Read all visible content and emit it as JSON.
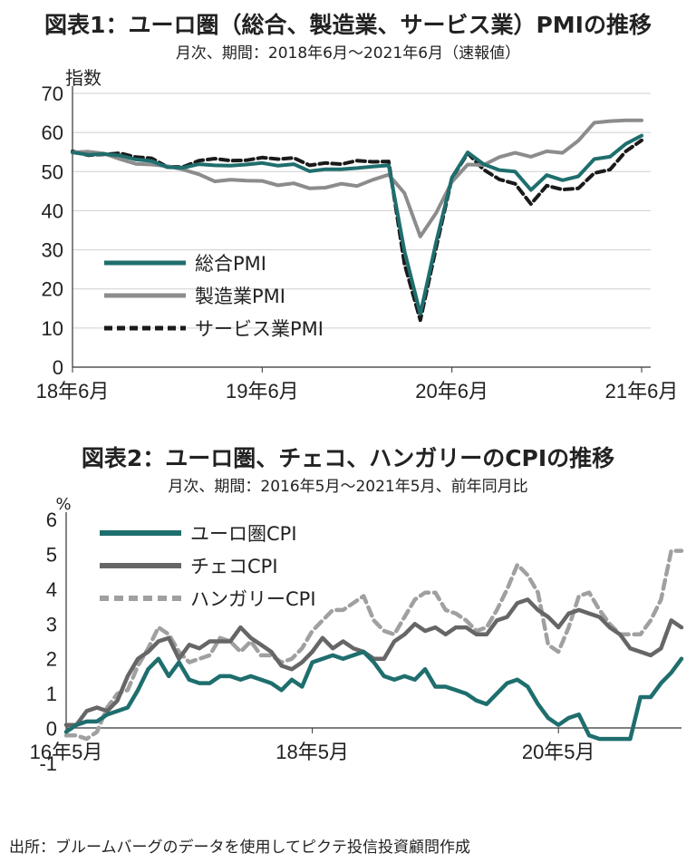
{
  "chart_data": [
    {
      "type": "line",
      "title": "図表1：ユーロ圏（総合、製造業、サービス業）PMIの推移",
      "subtitle": "月次、期間：2018年6月～2021年6月（速報値）",
      "ylabel": "指数",
      "xlabel": "",
      "ylim": [
        0,
        70
      ],
      "yticks": [
        "0",
        "10",
        "20",
        "30",
        "40",
        "50",
        "60",
        "70"
      ],
      "xtick_labels": [
        "18年6月",
        "19年6月",
        "20年6月",
        "21年6月"
      ],
      "x": [
        "2018-06",
        "2018-07",
        "2018-08",
        "2018-09",
        "2018-10",
        "2018-11",
        "2018-12",
        "2019-01",
        "2019-02",
        "2019-03",
        "2019-04",
        "2019-05",
        "2019-06",
        "2019-07",
        "2019-08",
        "2019-09",
        "2019-10",
        "2019-11",
        "2019-12",
        "2020-01",
        "2020-02",
        "2020-03",
        "2020-04",
        "2020-05",
        "2020-06",
        "2020-07",
        "2020-08",
        "2020-09",
        "2020-10",
        "2020-11",
        "2020-12",
        "2021-01",
        "2021-02",
        "2021-03",
        "2021-04",
        "2021-05",
        "2021-06"
      ],
      "grid": true,
      "legend_position": "bottom-left",
      "series": [
        {
          "name": "総合PMI",
          "color": "#1f6e6e",
          "style": "solid",
          "values": [
            54.9,
            54.3,
            54.5,
            54.1,
            53.1,
            52.7,
            51.1,
            51.0,
            51.9,
            51.6,
            51.5,
            51.8,
            52.2,
            51.5,
            51.9,
            50.1,
            50.6,
            50.6,
            50.9,
            51.3,
            51.6,
            29.7,
            13.6,
            31.9,
            48.5,
            54.9,
            51.9,
            50.4,
            50.0,
            45.3,
            49.1,
            47.8,
            48.8,
            53.2,
            53.8,
            57.1,
            59.2
          ]
        },
        {
          "name": "製造業PMI",
          "color": "#8c8c8c",
          "style": "solid",
          "values": [
            54.9,
            55.1,
            54.6,
            53.2,
            52.0,
            51.8,
            51.4,
            50.5,
            49.3,
            47.5,
            47.9,
            47.7,
            47.6,
            46.5,
            47.0,
            45.7,
            45.9,
            46.9,
            46.3,
            47.9,
            49.2,
            44.5,
            33.4,
            39.4,
            47.4,
            51.8,
            51.7,
            53.7,
            54.8,
            53.8,
            55.2,
            54.8,
            57.9,
            62.5,
            62.9,
            63.1,
            63.1
          ]
        },
        {
          "name": "サービス業PMI",
          "color": "#1a1a1a",
          "style": "dashed",
          "values": [
            55.2,
            54.2,
            54.4,
            54.7,
            53.7,
            53.4,
            51.2,
            51.2,
            52.8,
            53.3,
            52.8,
            52.9,
            53.6,
            53.2,
            53.5,
            51.6,
            52.2,
            51.9,
            52.8,
            52.5,
            52.6,
            26.4,
            12.0,
            30.5,
            48.3,
            54.7,
            50.5,
            48.0,
            46.9,
            41.7,
            46.4,
            45.4,
            45.7,
            49.6,
            50.5,
            55.2,
            58.0
          ]
        }
      ]
    },
    {
      "type": "line",
      "title": "図表2：ユーロ圏、チェコ、ハンガリーのCPIの推移",
      "subtitle": "月次、期間：2016年5月～2021年5月、前年同月比",
      "ylabel": "%",
      "xlabel": "",
      "ylim": [
        -1,
        6
      ],
      "yticks": [
        "-1",
        "0",
        "1",
        "2",
        "3",
        "4",
        "5",
        "6"
      ],
      "xtick_labels": [
        "16年5月",
        "18年5月",
        "20年5月"
      ],
      "x": [
        "2016-05",
        "2016-06",
        "2016-07",
        "2016-08",
        "2016-09",
        "2016-10",
        "2016-11",
        "2016-12",
        "2017-01",
        "2017-02",
        "2017-03",
        "2017-04",
        "2017-05",
        "2017-06",
        "2017-07",
        "2017-08",
        "2017-09",
        "2017-10",
        "2017-11",
        "2017-12",
        "2018-01",
        "2018-02",
        "2018-03",
        "2018-04",
        "2018-05",
        "2018-06",
        "2018-07",
        "2018-08",
        "2018-09",
        "2018-10",
        "2018-11",
        "2018-12",
        "2019-01",
        "2019-02",
        "2019-03",
        "2019-04",
        "2019-05",
        "2019-06",
        "2019-07",
        "2019-08",
        "2019-09",
        "2019-10",
        "2019-11",
        "2019-12",
        "2020-01",
        "2020-02",
        "2020-03",
        "2020-04",
        "2020-05",
        "2020-06",
        "2020-07",
        "2020-08",
        "2020-09",
        "2020-10",
        "2020-11",
        "2020-12",
        "2021-01",
        "2021-02",
        "2021-03",
        "2021-04",
        "2021-05"
      ],
      "grid": false,
      "legend_position": "top-left",
      "series": [
        {
          "name": "ユーロ圏CPI",
          "color": "#1f6e6e",
          "style": "solid",
          "values": [
            -0.1,
            0.1,
            0.2,
            0.2,
            0.4,
            0.5,
            0.6,
            1.1,
            1.7,
            2.0,
            1.5,
            1.9,
            1.4,
            1.3,
            1.3,
            1.5,
            1.5,
            1.4,
            1.5,
            1.4,
            1.3,
            1.1,
            1.4,
            1.2,
            1.9,
            2.0,
            2.1,
            2.0,
            2.1,
            2.2,
            1.9,
            1.5,
            1.4,
            1.5,
            1.4,
            1.7,
            1.2,
            1.2,
            1.1,
            1.0,
            0.8,
            0.7,
            1.0,
            1.3,
            1.4,
            1.2,
            0.7,
            0.3,
            0.1,
            0.3,
            0.4,
            -0.2,
            -0.3,
            -0.3,
            -0.3,
            -0.3,
            0.9,
            0.9,
            1.3,
            1.6,
            2.0
          ]
        },
        {
          "name": "チェコCPI",
          "color": "#666666",
          "style": "solid",
          "values": [
            0.1,
            0.1,
            0.5,
            0.6,
            0.5,
            0.8,
            1.5,
            2.0,
            2.2,
            2.5,
            2.6,
            2.0,
            2.4,
            2.3,
            2.5,
            2.5,
            2.5,
            2.9,
            2.6,
            2.4,
            2.2,
            1.8,
            1.7,
            1.9,
            2.2,
            2.6,
            2.3,
            2.5,
            2.3,
            2.2,
            2.0,
            2.0,
            2.5,
            2.7,
            3.0,
            2.8,
            2.9,
            2.7,
            2.9,
            2.9,
            2.7,
            2.7,
            3.1,
            3.2,
            3.6,
            3.7,
            3.4,
            3.2,
            2.9,
            3.3,
            3.4,
            3.3,
            3.2,
            2.9,
            2.7,
            2.3,
            2.2,
            2.1,
            2.3,
            3.1,
            2.9
          ]
        },
        {
          "name": "ハンガリーCPI",
          "color": "#a0a0a0",
          "style": "dashed",
          "values": [
            -0.2,
            -0.2,
            -0.3,
            -0.1,
            0.6,
            1.0,
            1.1,
            1.8,
            2.3,
            2.9,
            2.7,
            2.2,
            1.9,
            2.0,
            2.1,
            2.6,
            2.5,
            2.2,
            2.5,
            2.1,
            2.1,
            1.9,
            2.0,
            2.3,
            2.8,
            3.1,
            3.4,
            3.4,
            3.6,
            3.8,
            3.1,
            2.8,
            2.7,
            3.2,
            3.7,
            3.9,
            3.9,
            3.4,
            3.3,
            3.1,
            2.8,
            2.9,
            3.4,
            4.0,
            4.7,
            4.4,
            3.9,
            2.4,
            2.2,
            2.9,
            3.8,
            3.9,
            3.4,
            3.0,
            2.7,
            2.7,
            2.7,
            3.1,
            3.7,
            5.1,
            5.1
          ]
        }
      ]
    }
  ],
  "source": "出所：ブルームバーグのデータを使用してピクテ投信投資顧問作成"
}
